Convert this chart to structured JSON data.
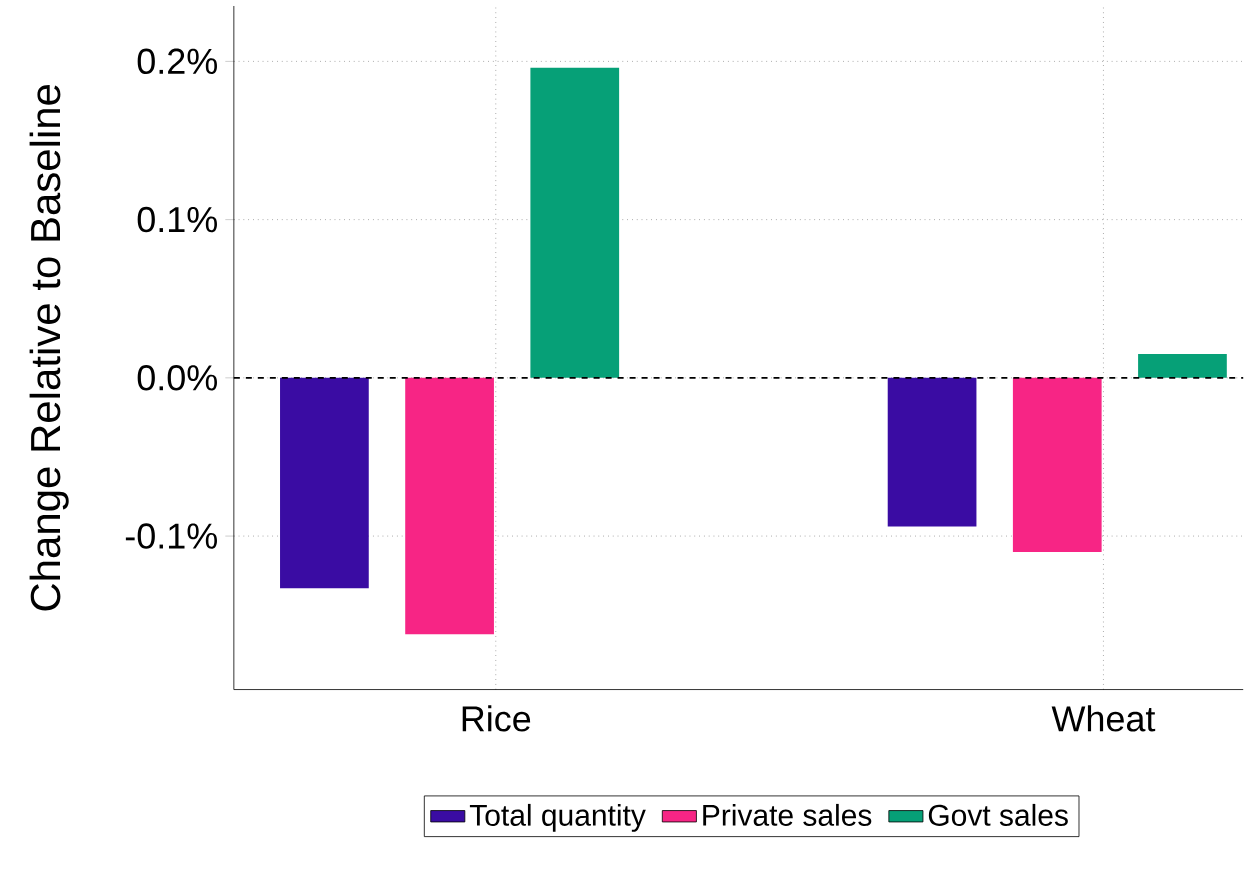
{
  "chart_data": {
    "type": "bar",
    "ylabel": "Change Relative to Baseline",
    "categories": [
      "Rice",
      "Wheat"
    ],
    "series": [
      {
        "name": "Total quantity",
        "color": "#3a0ca3",
        "values": [
          -0.133,
          -0.094
        ]
      },
      {
        "name": "Private sales",
        "color": "#f72585",
        "values": [
          -0.162,
          -0.11
        ]
      },
      {
        "name": "Govt sales",
        "color": "#06a077",
        "values": [
          0.196,
          0.015
        ]
      }
    ],
    "ylim": [
      -0.197,
      0.235
    ],
    "yticks": [
      {
        "value": -0.1,
        "label": "-0.1%"
      },
      {
        "value": 0.0,
        "label": "0.0%"
      },
      {
        "value": 0.1,
        "label": "0.1%"
      },
      {
        "value": 0.2,
        "label": "0.2%"
      }
    ],
    "grid": true,
    "legend": "bottom",
    "ref_lines": [
      {
        "axis": "y",
        "value": 0,
        "color": "#000000",
        "line_style": "dashed"
      }
    ]
  }
}
